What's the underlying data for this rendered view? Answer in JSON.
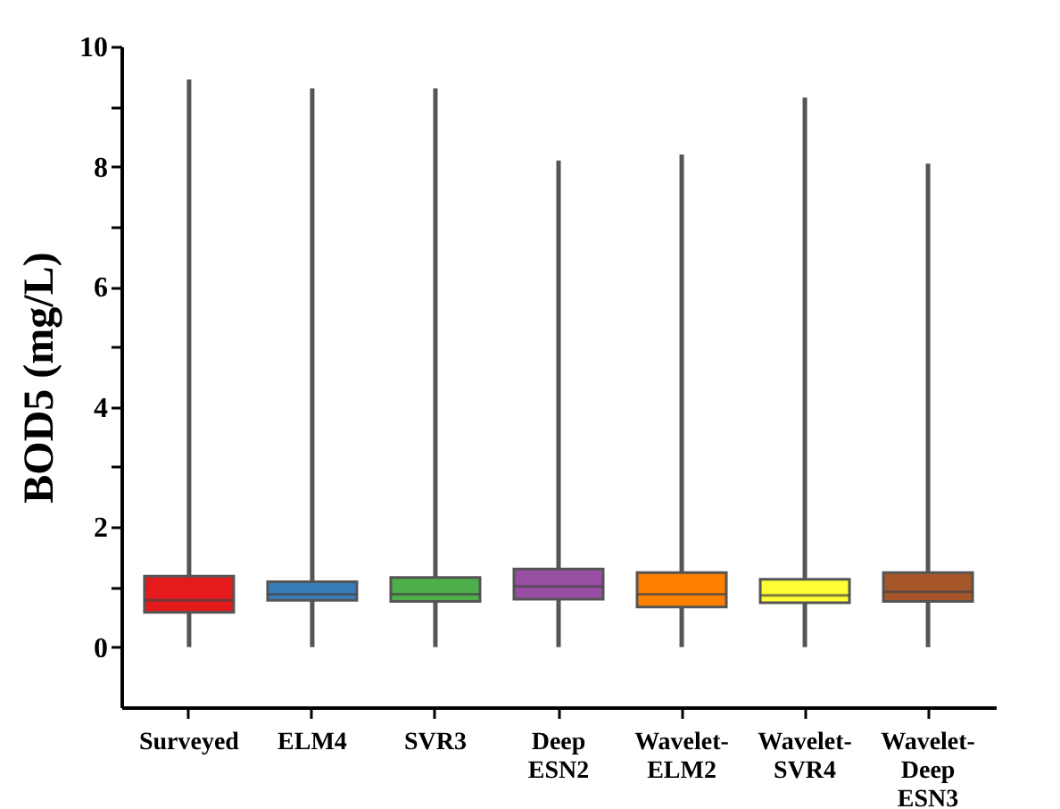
{
  "chart_data": {
    "type": "box",
    "ylabel": "BOD5 (mg/L)",
    "categories": [
      "Surveyed",
      "ELM4",
      "SVR3",
      "Deep ESN2",
      "Wavelet-ELM2",
      "Wavelet-SVR4",
      "Wavelet-Deep ESN3"
    ],
    "colors": [
      "#e41a1c",
      "#377eb8",
      "#4daf4a",
      "#984ea3",
      "#ff7f00",
      "#ffff33",
      "#a65628"
    ],
    "boxes": [
      {
        "low": 0,
        "q1": 0.58,
        "median": 0.78,
        "q3": 1.18,
        "high": 9.45
      },
      {
        "low": 0,
        "q1": 0.78,
        "median": 0.88,
        "q3": 1.09,
        "high": 9.3
      },
      {
        "low": 0,
        "q1": 0.76,
        "median": 0.88,
        "q3": 1.16,
        "high": 9.3
      },
      {
        "low": 0,
        "q1": 0.8,
        "median": 1.01,
        "q3": 1.3,
        "high": 8.1
      },
      {
        "low": 0,
        "q1": 0.67,
        "median": 0.88,
        "q3": 1.24,
        "high": 8.2
      },
      {
        "low": 0,
        "q1": 0.74,
        "median": 0.86,
        "q3": 1.13,
        "high": 9.15
      },
      {
        "low": 0,
        "q1": 0.76,
        "median": 0.92,
        "q3": 1.24,
        "high": 8.05
      }
    ],
    "ylim": [
      -1,
      10
    ],
    "yticks": [
      0,
      {
        "value": 1,
        "label": null
      },
      2,
      {
        "value": 3,
        "label": null
      },
      4,
      {
        "value": 5,
        "label": null
      },
      6,
      {
        "value": 7,
        "label": null
      },
      8,
      {
        "value": 9,
        "label": null
      },
      10
    ],
    "grid": false
  }
}
